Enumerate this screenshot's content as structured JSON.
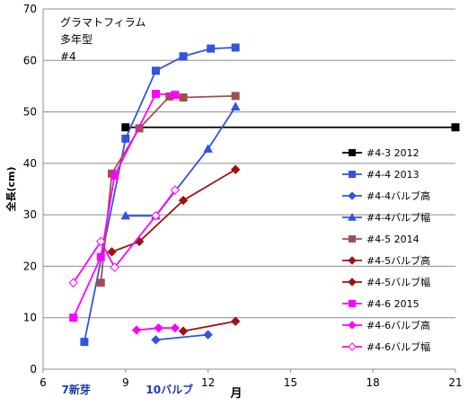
{
  "chart_data": {
    "type": "line",
    "title_lines": [
      "グラマトフィラム",
      "多年型",
      "#4"
    ],
    "xlabel": "月",
    "ylabel": "全長(cm)",
    "xlim": [
      6,
      21
    ],
    "ylim": [
      0,
      70
    ],
    "xticks": [
      6,
      9,
      12,
      15,
      18,
      21
    ],
    "yticks": [
      0,
      10,
      20,
      30,
      40,
      50,
      60,
      70
    ],
    "grid": "horizontal",
    "legend_position": "right",
    "annotations": [
      {
        "text": "7新芽",
        "x": 7.2,
        "color": "#1f3cb4"
      },
      {
        "text": "10バルブ",
        "x": 10.6,
        "color": "#1f3cb4"
      }
    ],
    "series": [
      {
        "name": "#4-3 2012",
        "color": "#000000",
        "marker": "square",
        "fill": "filled",
        "points": [
          [
            9.0,
            47
          ],
          [
            21.0,
            47
          ]
        ]
      },
      {
        "name": "#4-4 2013",
        "color": "#3355dd",
        "marker": "square",
        "fill": "filled",
        "points": [
          [
            7.5,
            5.3
          ],
          [
            9.0,
            44.8
          ],
          [
            10.1,
            58.0
          ],
          [
            11.1,
            60.8
          ],
          [
            12.1,
            62.3
          ],
          [
            13.0,
            62.5
          ]
        ]
      },
      {
        "name": "#4-4バルブ高",
        "color": "#3355dd",
        "marker": "diamond",
        "fill": "filled",
        "points": [
          [
            10.1,
            5.7
          ],
          [
            12.0,
            6.7
          ]
        ]
      },
      {
        "name": "#4-4バルブ幅",
        "color": "#3355dd",
        "marker": "triangle",
        "fill": "filled",
        "points": [
          [
            9.0,
            29.8
          ],
          [
            10.1,
            29.8
          ],
          [
            12.0,
            42.8
          ],
          [
            13.0,
            51.0
          ]
        ]
      },
      {
        "name": "#4-5 2014",
        "color": "#a0504e",
        "marker": "square",
        "fill": "filled",
        "points": [
          [
            8.1,
            16.8
          ],
          [
            8.5,
            38.0
          ],
          [
            9.5,
            46.8
          ],
          [
            10.6,
            53.0
          ],
          [
            11.1,
            52.8
          ],
          [
            13.0,
            53.1
          ]
        ]
      },
      {
        "name": "#4-5バルブ高",
        "color": "#a01010",
        "marker": "diamond",
        "fill": "filled",
        "points": [
          [
            11.1,
            7.4
          ],
          [
            13.0,
            9.3
          ]
        ]
      },
      {
        "name": "#4-5バルブ幅",
        "color": "#a01010",
        "marker": "diamond",
        "fill": "filled",
        "points": [
          [
            8.5,
            22.8
          ],
          [
            9.5,
            24.8
          ],
          [
            11.1,
            32.8
          ],
          [
            13.0,
            38.8
          ]
        ]
      },
      {
        "name": "#4-6 2015",
        "color": "#ff00ff",
        "marker": "square",
        "fill": "filled",
        "points": [
          [
            7.1,
            10.0
          ],
          [
            8.1,
            21.8
          ],
          [
            8.6,
            37.6
          ],
          [
            10.1,
            53.5
          ],
          [
            10.8,
            53.3
          ]
        ]
      },
      {
        "name": "#4-6バルブ高",
        "color": "#ff00ff",
        "marker": "diamond",
        "fill": "filled",
        "points": [
          [
            9.4,
            7.6
          ],
          [
            10.2,
            8.0
          ],
          [
            10.8,
            8.0
          ]
        ]
      },
      {
        "name": "#4-6バルブ幅",
        "color": "#ff00ff",
        "marker": "diamond",
        "fill": "open",
        "points": [
          [
            7.1,
            16.8
          ],
          [
            8.1,
            24.8
          ],
          [
            8.6,
            19.8
          ],
          [
            10.1,
            29.8
          ],
          [
            10.8,
            34.8
          ]
        ]
      }
    ]
  }
}
